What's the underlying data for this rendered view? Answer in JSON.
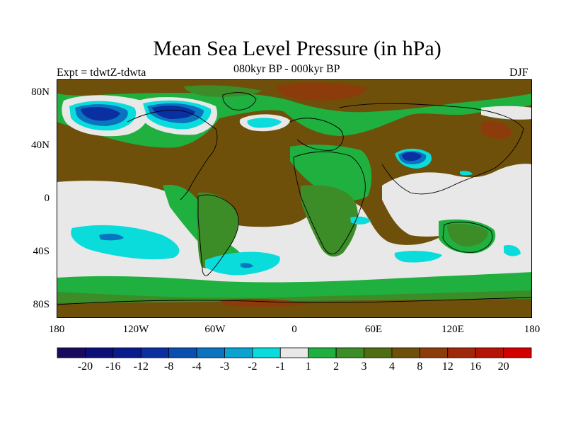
{
  "title": "Mean Sea Level Pressure (in hPa)",
  "subtitle": "080kyr BP - 000kyr BP",
  "experiment": "Expt = tdwtZ-tdwta",
  "season": "DJF",
  "lat_labels": [
    "80N",
    "40N",
    "0",
    "40S",
    "80S"
  ],
  "lon_labels": [
    "180",
    "120W",
    "60W",
    "0",
    "60E",
    "120E",
    "180"
  ],
  "colorbar": {
    "labels": [
      "-20",
      "-16",
      "-12",
      "-8",
      "-4",
      "-3",
      "-2",
      "-1",
      "1",
      "2",
      "3",
      "4",
      "8",
      "12",
      "16",
      "20"
    ],
    "colors": [
      "#1a0a5e",
      "#0d0f78",
      "#0a1c8c",
      "#0a2fa0",
      "#0a4fb0",
      "#0a74c0",
      "#0aa2d0",
      "#0adcdc",
      "#e8e8e8",
      "#20b040",
      "#3c8c28",
      "#4f6e14",
      "#6e500a",
      "#8c3c0a",
      "#a0280a",
      "#b41408",
      "#d20000"
    ]
  },
  "colors": {
    "strong_negative": "#0a2fa0",
    "moderate_negative": "#0a74c0",
    "weak_negative": "#0adcdc",
    "neutral": "#e8e8e8",
    "weak_positive": "#20b040",
    "moderate_positive": "#3c8c28",
    "strong_positive": "#6e500a",
    "max_positive": "#b41408"
  }
}
